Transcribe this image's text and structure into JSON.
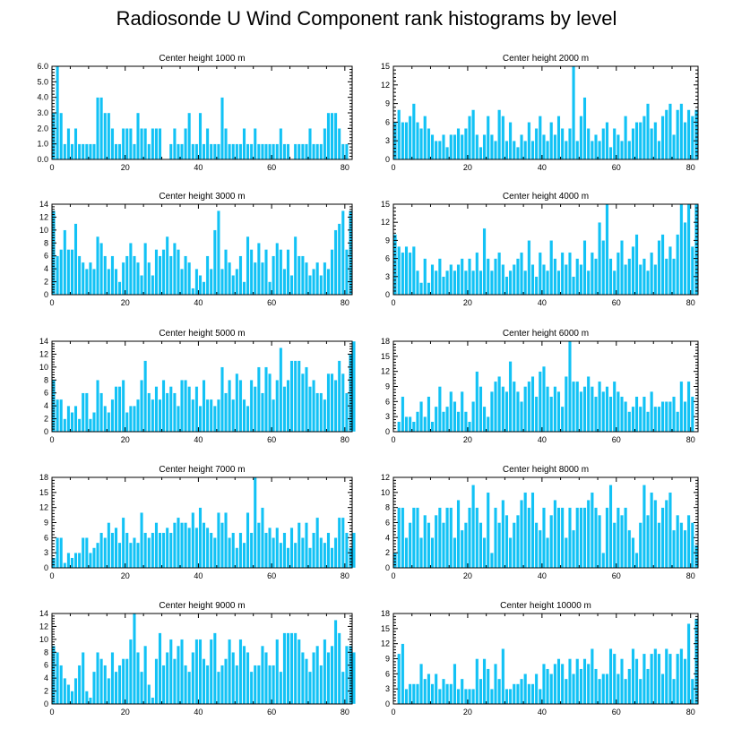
{
  "title": "Radiosonde U Wind Component rank histograms by level",
  "colors": {
    "bar": "#12C2F5",
    "frame": "#000000",
    "background": "#ffffff"
  },
  "chart_data": [
    {
      "type": "bar",
      "title": "Center height 1000 m",
      "xlim": [
        0,
        82
      ],
      "ylim": [
        0,
        6
      ],
      "xticks": [
        0,
        20,
        40,
        60,
        80
      ],
      "yticks": [
        "0.0",
        "1.0",
        "2.0",
        "3.0",
        "4.0",
        "5.0",
        "6.0"
      ],
      "values": [
        3,
        6,
        3,
        1,
        2,
        1,
        2,
        1,
        1,
        1,
        1,
        1,
        4,
        4,
        3,
        3,
        2,
        1,
        1,
        2,
        2,
        2,
        1,
        3,
        2,
        2,
        1,
        2,
        2,
        2,
        0,
        0,
        1,
        2,
        1,
        1,
        2,
        3,
        1,
        1,
        3,
        1,
        2,
        1,
        1,
        1,
        4,
        2,
        1,
        1,
        1,
        1,
        2,
        1,
        1,
        2,
        1,
        1,
        1,
        1,
        1,
        1,
        2,
        1,
        1,
        0,
        1,
        1,
        1,
        1,
        2,
        1,
        1,
        1,
        2,
        3,
        3,
        3,
        2,
        1,
        1
      ]
    },
    {
      "type": "bar",
      "title": "Center height 2000 m",
      "xlim": [
        0,
        82
      ],
      "ylim": [
        0,
        15
      ],
      "xticks": [
        0,
        20,
        40,
        60,
        80
      ],
      "yticks": [
        "0",
        "3",
        "6",
        "9",
        "12",
        "15"
      ],
      "values": [
        6,
        8,
        6,
        6,
        7,
        9,
        6,
        5,
        7,
        5,
        4,
        3,
        3,
        4,
        2,
        4,
        4,
        5,
        4,
        5,
        7,
        8,
        4,
        2,
        4,
        7,
        4,
        3,
        8,
        7,
        3,
        6,
        3,
        2,
        4,
        3,
        6,
        3,
        5,
        7,
        4,
        3,
        6,
        4,
        7,
        5,
        3,
        5,
        15,
        3,
        7,
        10,
        5,
        3,
        4,
        3,
        5,
        6,
        2,
        5,
        4,
        3,
        7,
        3,
        5,
        6,
        6,
        7,
        9,
        5,
        6,
        3,
        7,
        8,
        9,
        4,
        8,
        9,
        6,
        8,
        7,
        8
      ]
    },
    {
      "type": "bar",
      "title": "Center height 3000 m",
      "xlim": [
        0,
        82
      ],
      "ylim": [
        0,
        14
      ],
      "xticks": [
        0,
        20,
        40,
        60,
        80
      ],
      "yticks": [
        "0",
        "2",
        "4",
        "6",
        "8",
        "10",
        "12",
        "14"
      ],
      "values": [
        13,
        6,
        7,
        10,
        7,
        7,
        11,
        6,
        5,
        4,
        5,
        4,
        9,
        8,
        6,
        4,
        6,
        4,
        2,
        5,
        6,
        8,
        6,
        5,
        3,
        8,
        5,
        3,
        7,
        6,
        7,
        9,
        6,
        8,
        7,
        4,
        6,
        5,
        1,
        4,
        3,
        2,
        6,
        4,
        10,
        13,
        4,
        7,
        5,
        3,
        4,
        6,
        2,
        9,
        7,
        5,
        8,
        5,
        7,
        2,
        6,
        8,
        7,
        4,
        7,
        3,
        9,
        6,
        6,
        5,
        3,
        4,
        5,
        3,
        5,
        4,
        7,
        10,
        11,
        13,
        7,
        13
      ]
    },
    {
      "type": "bar",
      "title": "Center height 4000 m",
      "xlim": [
        0,
        82
      ],
      "ylim": [
        0,
        15
      ],
      "xticks": [
        0,
        20,
        40,
        60,
        80
      ],
      "yticks": [
        "0",
        "3",
        "6",
        "9",
        "12",
        "15"
      ],
      "values": [
        10,
        8,
        7,
        8,
        7,
        8,
        4,
        2,
        6,
        2,
        5,
        4,
        6,
        3,
        4,
        5,
        4,
        5,
        6,
        4,
        6,
        4,
        7,
        4,
        11,
        6,
        4,
        6,
        7,
        5,
        3,
        4,
        5,
        6,
        7,
        4,
        9,
        5,
        3,
        7,
        5,
        4,
        9,
        6,
        4,
        7,
        5,
        7,
        3,
        6,
        5,
        9,
        4,
        7,
        6,
        12,
        9,
        15,
        6,
        4,
        7,
        9,
        5,
        6,
        8,
        10,
        5,
        6,
        4,
        7,
        5,
        9,
        10,
        6,
        8,
        6,
        10,
        15,
        12,
        15,
        8,
        15
      ]
    },
    {
      "type": "bar",
      "title": "Center height 5000 m",
      "xlim": [
        0,
        82
      ],
      "ylim": [
        0,
        14
      ],
      "xticks": [
        0,
        20,
        40,
        60,
        80
      ],
      "yticks": [
        "0",
        "2",
        "4",
        "6",
        "8",
        "10",
        "12",
        "14"
      ],
      "values": [
        8,
        5,
        5,
        2,
        4,
        3,
        4,
        2,
        6,
        6,
        2,
        3,
        8,
        6,
        4,
        3,
        5,
        7,
        7,
        8,
        3,
        4,
        4,
        5,
        8,
        11,
        6,
        5,
        7,
        5,
        8,
        6,
        7,
        6,
        4,
        8,
        8,
        7,
        5,
        7,
        4,
        8,
        5,
        5,
        4,
        5,
        10,
        6,
        8,
        5,
        9,
        8,
        5,
        4,
        8,
        7,
        10,
        6,
        10,
        9,
        5,
        8,
        13,
        7,
        8,
        11,
        11,
        11,
        9,
        10,
        7,
        8,
        6,
        6,
        5,
        9,
        9,
        8,
        11,
        9,
        6,
        12,
        14
      ]
    },
    {
      "type": "bar",
      "title": "Center height 6000 m",
      "xlim": [
        0,
        82
      ],
      "ylim": [
        0,
        18
      ],
      "xticks": [
        0,
        20,
        40,
        60,
        80
      ],
      "yticks": [
        "0",
        "3",
        "6",
        "9",
        "12",
        "15",
        "18"
      ],
      "values": [
        0,
        2,
        7,
        3,
        3,
        2,
        4,
        6,
        3,
        7,
        2,
        5,
        9,
        4,
        5,
        8,
        6,
        4,
        8,
        4,
        2,
        6,
        12,
        9,
        5,
        3,
        8,
        10,
        11,
        9,
        8,
        14,
        10,
        8,
        6,
        9,
        10,
        11,
        7,
        12,
        13,
        9,
        7,
        9,
        8,
        5,
        11,
        18,
        10,
        10,
        8,
        9,
        11,
        9,
        7,
        10,
        8,
        9,
        7,
        10,
        8,
        7,
        6,
        4,
        5,
        7,
        5,
        7,
        4,
        8,
        5,
        5,
        6,
        6,
        6,
        7,
        4,
        10,
        6,
        10,
        7
      ]
    },
    {
      "type": "bar",
      "title": "Center height 7000 m",
      "xlim": [
        0,
        82
      ],
      "ylim": [
        0,
        18
      ],
      "xticks": [
        0,
        20,
        40,
        60,
        80
      ],
      "yticks": [
        "0",
        "3",
        "6",
        "9",
        "12",
        "15",
        "18"
      ],
      "values": [
        2,
        6,
        6,
        1,
        3,
        2,
        3,
        3,
        6,
        6,
        3,
        4,
        5,
        7,
        6,
        9,
        7,
        8,
        5,
        10,
        7,
        5,
        6,
        5,
        11,
        7,
        6,
        7,
        9,
        7,
        7,
        8,
        7,
        9,
        10,
        9,
        9,
        8,
        11,
        8,
        12,
        9,
        8,
        7,
        6,
        11,
        9,
        11,
        6,
        7,
        4,
        7,
        5,
        11,
        7,
        18,
        9,
        12,
        7,
        8,
        6,
        8,
        5,
        7,
        4,
        8,
        5,
        9,
        6,
        9,
        4,
        7,
        10,
        6,
        5,
        7,
        4,
        6,
        10,
        10,
        7,
        4,
        7
      ]
    },
    {
      "type": "bar",
      "title": "Center height 8000 m",
      "xlim": [
        0,
        82
      ],
      "ylim": [
        0,
        12
      ],
      "xticks": [
        0,
        20,
        40,
        60,
        80
      ],
      "yticks": [
        "0",
        "2",
        "4",
        "6",
        "8",
        "10",
        "12"
      ],
      "values": [
        2,
        8,
        8,
        4,
        6,
        8,
        8,
        4,
        7,
        6,
        4,
        7,
        8,
        6,
        8,
        8,
        4,
        9,
        5,
        6,
        8,
        11,
        8,
        6,
        4,
        10,
        2,
        8,
        6,
        9,
        7,
        4,
        6,
        7,
        9,
        10,
        8,
        10,
        6,
        5,
        8,
        4,
        7,
        9,
        8,
        8,
        4,
        8,
        5,
        8,
        8,
        8,
        9,
        10,
        8,
        7,
        2,
        8,
        11,
        6,
        8,
        7,
        8,
        5,
        4,
        2,
        6,
        11,
        7,
        10,
        9,
        6,
        8,
        9,
        10,
        5,
        7,
        6,
        5,
        7,
        6,
        3
      ]
    },
    {
      "type": "bar",
      "title": "Center height 9000 m",
      "xlim": [
        0,
        82
      ],
      "ylim": [
        0,
        14
      ],
      "xticks": [
        0,
        20,
        40,
        60,
        80
      ],
      "yticks": [
        "0",
        "2",
        "4",
        "6",
        "8",
        "10",
        "12",
        "14"
      ],
      "values": [
        9,
        8,
        6,
        4,
        3,
        2,
        4,
        6,
        8,
        2,
        1,
        5,
        8,
        7,
        6,
        4,
        8,
        5,
        6,
        7,
        7,
        10,
        14,
        8,
        5,
        9,
        3,
        1,
        7,
        11,
        6,
        8,
        10,
        7,
        9,
        10,
        6,
        5,
        8,
        10,
        10,
        7,
        6,
        10,
        11,
        5,
        6,
        7,
        10,
        8,
        6,
        10,
        9,
        8,
        5,
        6,
        6,
        9,
        8,
        6,
        6,
        10,
        5,
        11,
        11,
        11,
        11,
        10,
        8,
        7,
        5,
        8,
        9,
        6,
        10,
        8,
        9,
        13,
        11,
        5,
        9,
        9,
        8
      ]
    },
    {
      "type": "bar",
      "title": "Center height 10000 m",
      "xlim": [
        0,
        82
      ],
      "ylim": [
        0,
        18
      ],
      "xticks": [
        0,
        20,
        40,
        60,
        80
      ],
      "yticks": [
        "0",
        "3",
        "6",
        "9",
        "12",
        "15",
        "18"
      ],
      "values": [
        0,
        10,
        12,
        3,
        4,
        4,
        4,
        8,
        5,
        6,
        4,
        6,
        3,
        5,
        4,
        4,
        8,
        3,
        5,
        3,
        3,
        3,
        9,
        5,
        9,
        7,
        3,
        8,
        5,
        11,
        3,
        3,
        4,
        4,
        5,
        6,
        4,
        4,
        6,
        3,
        8,
        7,
        6,
        8,
        9,
        8,
        5,
        9,
        6,
        9,
        7,
        9,
        8,
        11,
        7,
        5,
        6,
        6,
        11,
        10,
        6,
        9,
        5,
        7,
        11,
        9,
        5,
        10,
        7,
        10,
        11,
        10,
        6,
        11,
        10,
        5,
        10,
        11,
        9,
        16,
        5,
        17
      ]
    }
  ]
}
